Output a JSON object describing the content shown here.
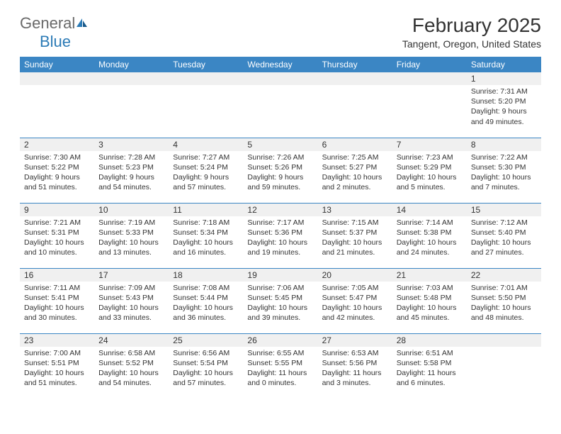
{
  "logo": {
    "text1": "General",
    "text2": "Blue"
  },
  "header": {
    "month_title": "February 2025",
    "location": "Tangent, Oregon, United States"
  },
  "day_names": [
    "Sunday",
    "Monday",
    "Tuesday",
    "Wednesday",
    "Thursday",
    "Friday",
    "Saturday"
  ],
  "colors": {
    "header_bg": "#3b86c4",
    "header_text": "#ffffff",
    "daynum_bg": "#f0f0f0",
    "border": "#3b86c4",
    "logo_gray": "#6a6a6a",
    "logo_blue": "#2c7bb6",
    "text": "#333333"
  },
  "weeks": [
    [
      {
        "num": "",
        "sunrise": "",
        "sunset": "",
        "daylight": ""
      },
      {
        "num": "",
        "sunrise": "",
        "sunset": "",
        "daylight": ""
      },
      {
        "num": "",
        "sunrise": "",
        "sunset": "",
        "daylight": ""
      },
      {
        "num": "",
        "sunrise": "",
        "sunset": "",
        "daylight": ""
      },
      {
        "num": "",
        "sunrise": "",
        "sunset": "",
        "daylight": ""
      },
      {
        "num": "",
        "sunrise": "",
        "sunset": "",
        "daylight": ""
      },
      {
        "num": "1",
        "sunrise": "Sunrise: 7:31 AM",
        "sunset": "Sunset: 5:20 PM",
        "daylight": "Daylight: 9 hours and 49 minutes."
      }
    ],
    [
      {
        "num": "2",
        "sunrise": "Sunrise: 7:30 AM",
        "sunset": "Sunset: 5:22 PM",
        "daylight": "Daylight: 9 hours and 51 minutes."
      },
      {
        "num": "3",
        "sunrise": "Sunrise: 7:28 AM",
        "sunset": "Sunset: 5:23 PM",
        "daylight": "Daylight: 9 hours and 54 minutes."
      },
      {
        "num": "4",
        "sunrise": "Sunrise: 7:27 AM",
        "sunset": "Sunset: 5:24 PM",
        "daylight": "Daylight: 9 hours and 57 minutes."
      },
      {
        "num": "5",
        "sunrise": "Sunrise: 7:26 AM",
        "sunset": "Sunset: 5:26 PM",
        "daylight": "Daylight: 9 hours and 59 minutes."
      },
      {
        "num": "6",
        "sunrise": "Sunrise: 7:25 AM",
        "sunset": "Sunset: 5:27 PM",
        "daylight": "Daylight: 10 hours and 2 minutes."
      },
      {
        "num": "7",
        "sunrise": "Sunrise: 7:23 AM",
        "sunset": "Sunset: 5:29 PM",
        "daylight": "Daylight: 10 hours and 5 minutes."
      },
      {
        "num": "8",
        "sunrise": "Sunrise: 7:22 AM",
        "sunset": "Sunset: 5:30 PM",
        "daylight": "Daylight: 10 hours and 7 minutes."
      }
    ],
    [
      {
        "num": "9",
        "sunrise": "Sunrise: 7:21 AM",
        "sunset": "Sunset: 5:31 PM",
        "daylight": "Daylight: 10 hours and 10 minutes."
      },
      {
        "num": "10",
        "sunrise": "Sunrise: 7:19 AM",
        "sunset": "Sunset: 5:33 PM",
        "daylight": "Daylight: 10 hours and 13 minutes."
      },
      {
        "num": "11",
        "sunrise": "Sunrise: 7:18 AM",
        "sunset": "Sunset: 5:34 PM",
        "daylight": "Daylight: 10 hours and 16 minutes."
      },
      {
        "num": "12",
        "sunrise": "Sunrise: 7:17 AM",
        "sunset": "Sunset: 5:36 PM",
        "daylight": "Daylight: 10 hours and 19 minutes."
      },
      {
        "num": "13",
        "sunrise": "Sunrise: 7:15 AM",
        "sunset": "Sunset: 5:37 PM",
        "daylight": "Daylight: 10 hours and 21 minutes."
      },
      {
        "num": "14",
        "sunrise": "Sunrise: 7:14 AM",
        "sunset": "Sunset: 5:38 PM",
        "daylight": "Daylight: 10 hours and 24 minutes."
      },
      {
        "num": "15",
        "sunrise": "Sunrise: 7:12 AM",
        "sunset": "Sunset: 5:40 PM",
        "daylight": "Daylight: 10 hours and 27 minutes."
      }
    ],
    [
      {
        "num": "16",
        "sunrise": "Sunrise: 7:11 AM",
        "sunset": "Sunset: 5:41 PM",
        "daylight": "Daylight: 10 hours and 30 minutes."
      },
      {
        "num": "17",
        "sunrise": "Sunrise: 7:09 AM",
        "sunset": "Sunset: 5:43 PM",
        "daylight": "Daylight: 10 hours and 33 minutes."
      },
      {
        "num": "18",
        "sunrise": "Sunrise: 7:08 AM",
        "sunset": "Sunset: 5:44 PM",
        "daylight": "Daylight: 10 hours and 36 minutes."
      },
      {
        "num": "19",
        "sunrise": "Sunrise: 7:06 AM",
        "sunset": "Sunset: 5:45 PM",
        "daylight": "Daylight: 10 hours and 39 minutes."
      },
      {
        "num": "20",
        "sunrise": "Sunrise: 7:05 AM",
        "sunset": "Sunset: 5:47 PM",
        "daylight": "Daylight: 10 hours and 42 minutes."
      },
      {
        "num": "21",
        "sunrise": "Sunrise: 7:03 AM",
        "sunset": "Sunset: 5:48 PM",
        "daylight": "Daylight: 10 hours and 45 minutes."
      },
      {
        "num": "22",
        "sunrise": "Sunrise: 7:01 AM",
        "sunset": "Sunset: 5:50 PM",
        "daylight": "Daylight: 10 hours and 48 minutes."
      }
    ],
    [
      {
        "num": "23",
        "sunrise": "Sunrise: 7:00 AM",
        "sunset": "Sunset: 5:51 PM",
        "daylight": "Daylight: 10 hours and 51 minutes."
      },
      {
        "num": "24",
        "sunrise": "Sunrise: 6:58 AM",
        "sunset": "Sunset: 5:52 PM",
        "daylight": "Daylight: 10 hours and 54 minutes."
      },
      {
        "num": "25",
        "sunrise": "Sunrise: 6:56 AM",
        "sunset": "Sunset: 5:54 PM",
        "daylight": "Daylight: 10 hours and 57 minutes."
      },
      {
        "num": "26",
        "sunrise": "Sunrise: 6:55 AM",
        "sunset": "Sunset: 5:55 PM",
        "daylight": "Daylight: 11 hours and 0 minutes."
      },
      {
        "num": "27",
        "sunrise": "Sunrise: 6:53 AM",
        "sunset": "Sunset: 5:56 PM",
        "daylight": "Daylight: 11 hours and 3 minutes."
      },
      {
        "num": "28",
        "sunrise": "Sunrise: 6:51 AM",
        "sunset": "Sunset: 5:58 PM",
        "daylight": "Daylight: 11 hours and 6 minutes."
      },
      {
        "num": "",
        "sunrise": "",
        "sunset": "",
        "daylight": ""
      }
    ]
  ]
}
